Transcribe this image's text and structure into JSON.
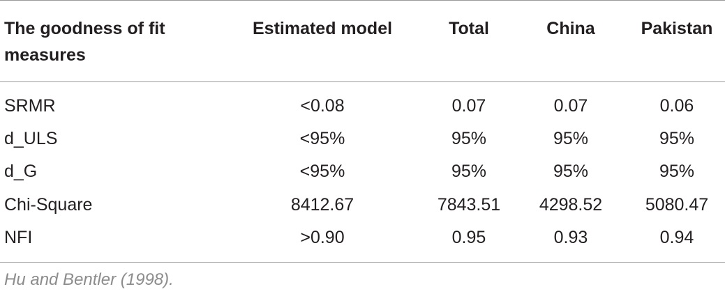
{
  "table": {
    "header": [
      "The goodness of fit measures",
      "Estimated model",
      "Total",
      "China",
      "Pakistan"
    ],
    "rows": [
      [
        "SRMR",
        "<0.08",
        "0.07",
        "0.07",
        "0.06"
      ],
      [
        "d_ULS",
        "<95%",
        "95%",
        "95%",
        "95%"
      ],
      [
        "d_G",
        "<95%",
        "95%",
        "95%",
        "95%"
      ],
      [
        "Chi-Square",
        "8412.67",
        "7843.51",
        "4298.52",
        "5080.47"
      ],
      [
        "NFI",
        ">0.90",
        "0.95",
        "0.93",
        "0.94"
      ]
    ],
    "footnote": "Hu and Bentler (1998)."
  }
}
